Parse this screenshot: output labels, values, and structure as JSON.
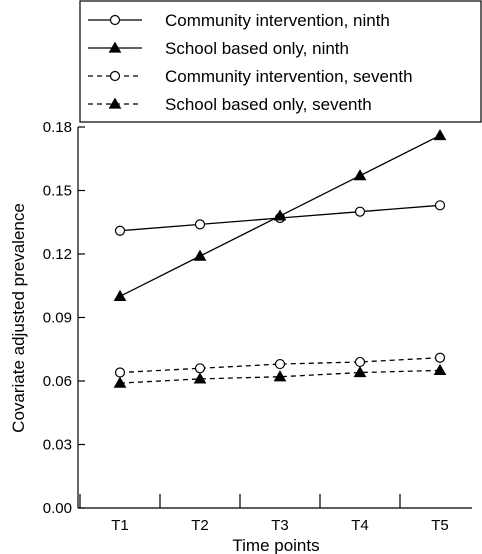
{
  "chart_data": {
    "type": "line",
    "xlabel": "Time points",
    "ylabel": "Covariate adjusted prevalence",
    "ylim": [
      0,
      0.18
    ],
    "yticks": [
      "0.00",
      "0.03",
      "0.06",
      "0.09",
      "0.12",
      "0.15",
      "0.18"
    ],
    "categories": [
      "T1",
      "T2",
      "T3",
      "T4",
      "T5"
    ],
    "legend_position": "top",
    "grid": false,
    "series": [
      {
        "name": "Community intervention, ninth",
        "marker": "circle-open",
        "dash": "solid",
        "values": [
          0.131,
          0.134,
          0.137,
          0.14,
          0.143
        ]
      },
      {
        "name": "School based only, ninth",
        "marker": "triangle-filled",
        "dash": "solid",
        "values": [
          0.1,
          0.119,
          0.138,
          0.157,
          0.176
        ]
      },
      {
        "name": "Community intervention, seventh",
        "marker": "circle-open",
        "dash": "dashed",
        "values": [
          0.064,
          0.066,
          0.068,
          0.069,
          0.071
        ]
      },
      {
        "name": "School based only, seventh",
        "marker": "triangle-filled",
        "dash": "dashed",
        "values": [
          0.059,
          0.061,
          0.062,
          0.064,
          0.065
        ]
      }
    ]
  }
}
